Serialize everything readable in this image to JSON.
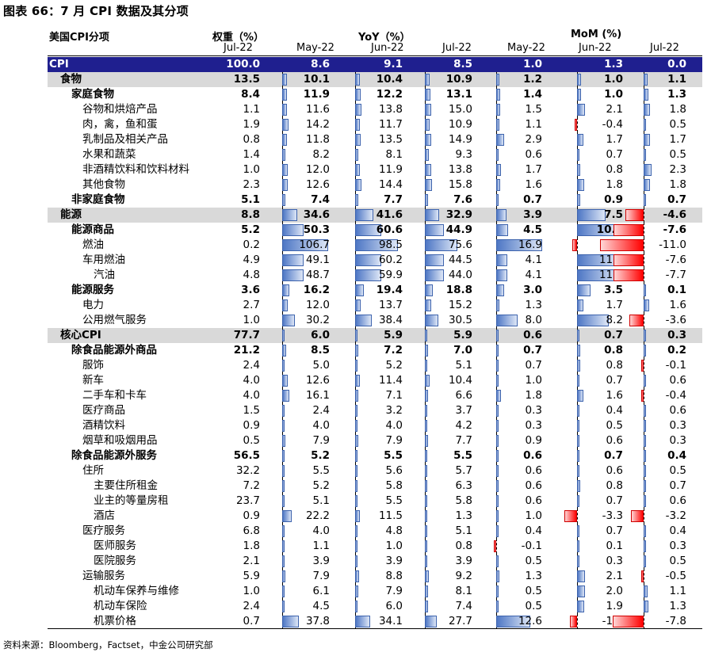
{
  "title": "图表 66：7 月 CPI 数据及其分项",
  "header": {
    "category": "美国CPI分项",
    "weight": "权重（%）",
    "yoy": "YoY（%）",
    "mom": "MoM (%)",
    "sub": [
      "Jul-22",
      "May-22",
      "Jun-22",
      "Jul-22",
      "May-22",
      "Jun-22",
      "Jul-22"
    ]
  },
  "rows": [
    {
      "label": "CPI",
      "level": 0,
      "style": "cpi",
      "w": "100.0",
      "v": [
        "8.6",
        "9.1",
        "8.5",
        "1.0",
        "1.3",
        "0.0"
      ]
    },
    {
      "label": "食物",
      "level": 1,
      "style": "shadebold",
      "w": "13.5",
      "v": [
        "10.1",
        "10.4",
        "10.9",
        "1.2",
        "1.0",
        "1.1"
      ]
    },
    {
      "label": "家庭食物",
      "level": 2,
      "style": "bold",
      "w": "8.4",
      "v": [
        "11.9",
        "12.2",
        "13.1",
        "1.4",
        "1.0",
        "1.3"
      ]
    },
    {
      "label": "谷物和烘焙产品",
      "level": 3,
      "style": "",
      "w": "1.1",
      "v": [
        "11.6",
        "13.8",
        "15.0",
        "1.5",
        "2.1",
        "1.8"
      ]
    },
    {
      "label": "肉，禽，鱼和蛋",
      "level": 3,
      "style": "",
      "w": "1.9",
      "v": [
        "14.2",
        "11.7",
        "10.9",
        "1.1",
        "-0.4",
        "0.5"
      ]
    },
    {
      "label": "乳制品及相关产品",
      "level": 3,
      "style": "",
      "w": "0.8",
      "v": [
        "11.8",
        "13.5",
        "14.9",
        "2.9",
        "1.7",
        "1.7"
      ]
    },
    {
      "label": "水果和蔬菜",
      "level": 3,
      "style": "",
      "w": "1.4",
      "v": [
        "8.2",
        "8.1",
        "9.3",
        "0.6",
        "0.7",
        "0.5"
      ]
    },
    {
      "label": "非酒精饮料和饮料材料",
      "level": 3,
      "style": "",
      "w": "1.0",
      "v": [
        "12.0",
        "11.9",
        "13.8",
        "1.7",
        "0.8",
        "2.3"
      ]
    },
    {
      "label": "其他食物",
      "level": 3,
      "style": "",
      "w": "2.3",
      "v": [
        "12.6",
        "14.4",
        "15.8",
        "1.6",
        "1.8",
        "1.8"
      ]
    },
    {
      "label": "非家庭食物",
      "level": 2,
      "style": "bold",
      "w": "5.1",
      "v": [
        "7.4",
        "7.7",
        "7.6",
        "0.7",
        "0.9",
        "0.7"
      ]
    },
    {
      "label": "能源",
      "level": 1,
      "style": "shadebold",
      "w": "8.8",
      "v": [
        "34.6",
        "41.6",
        "32.9",
        "3.9",
        "7.5",
        "-4.6"
      ]
    },
    {
      "label": "能源商品",
      "level": 2,
      "style": "bold",
      "w": "5.2",
      "v": [
        "50.3",
        "60.6",
        "44.9",
        "4.5",
        "10.4",
        "-7.6"
      ]
    },
    {
      "label": "燃油",
      "level": 3,
      "style": "",
      "w": "0.2",
      "v": [
        "106.7",
        "98.5",
        "75.6",
        "16.9",
        "-1.2",
        "-11.0"
      ]
    },
    {
      "label": "车用燃油",
      "level": 3,
      "style": "",
      "w": "4.9",
      "v": [
        "49.1",
        "60.2",
        "44.5",
        "4.1",
        "11.0",
        "-7.6"
      ]
    },
    {
      "label": "汽油",
      "level": 4,
      "style": "",
      "w": "4.8",
      "v": [
        "48.7",
        "59.9",
        "44.0",
        "4.1",
        "11.2",
        "-7.7"
      ]
    },
    {
      "label": "能源服务",
      "level": 2,
      "style": "bold",
      "w": "3.6",
      "v": [
        "16.2",
        "19.4",
        "18.8",
        "3.0",
        "3.5",
        "0.1"
      ]
    },
    {
      "label": "电力",
      "level": 3,
      "style": "",
      "w": "2.7",
      "v": [
        "12.0",
        "13.7",
        "15.2",
        "1.3",
        "1.7",
        "1.6"
      ]
    },
    {
      "label": "公用燃气服务",
      "level": 3,
      "style": "",
      "w": "1.0",
      "v": [
        "30.2",
        "38.4",
        "30.5",
        "8.0",
        "8.2",
        "-3.6"
      ]
    },
    {
      "label": "核心CPI",
      "level": 1,
      "style": "shadebold",
      "w": "77.7",
      "v": [
        "6.0",
        "5.9",
        "5.9",
        "0.6",
        "0.7",
        "0.3"
      ]
    },
    {
      "label": "除食品能源外商品",
      "level": 2,
      "style": "bold",
      "w": "21.2",
      "v": [
        "8.5",
        "7.2",
        "7.0",
        "0.7",
        "0.8",
        "0.2"
      ]
    },
    {
      "label": "服饰",
      "level": 3,
      "style": "",
      "w": "2.4",
      "v": [
        "5.0",
        "5.2",
        "5.1",
        "0.7",
        "0.8",
        "-0.1"
      ]
    },
    {
      "label": "新车",
      "level": 3,
      "style": "",
      "w": "4.0",
      "v": [
        "12.6",
        "11.4",
        "10.4",
        "1.0",
        "0.7",
        "0.6"
      ]
    },
    {
      "label": "二手车和卡车",
      "level": 3,
      "style": "",
      "w": "4.0",
      "v": [
        "16.1",
        "7.1",
        "6.6",
        "1.8",
        "1.6",
        "-0.4"
      ]
    },
    {
      "label": "医疗商品",
      "level": 3,
      "style": "",
      "w": "1.5",
      "v": [
        "2.4",
        "3.2",
        "3.7",
        "0.3",
        "0.4",
        "0.6"
      ]
    },
    {
      "label": "酒精饮料",
      "level": 3,
      "style": "",
      "w": "0.9",
      "v": [
        "4.0",
        "4.0",
        "4.2",
        "0.3",
        "0.5",
        "0.3"
      ]
    },
    {
      "label": "烟草和吸烟用品",
      "level": 3,
      "style": "",
      "w": "0.5",
      "v": [
        "7.9",
        "7.9",
        "7.7",
        "0.9",
        "0.6",
        "0.3"
      ]
    },
    {
      "label": "除食品能源外服务",
      "level": 2,
      "style": "bold",
      "w": "56.5",
      "v": [
        "5.2",
        "5.5",
        "5.5",
        "0.6",
        "0.7",
        "0.4"
      ]
    },
    {
      "label": "住所",
      "level": 3,
      "style": "",
      "w": "32.2",
      "v": [
        "5.5",
        "5.6",
        "5.7",
        "0.6",
        "0.6",
        "0.5"
      ]
    },
    {
      "label": "主要住所租金",
      "level": 4,
      "style": "",
      "w": "7.2",
      "v": [
        "5.2",
        "5.8",
        "6.3",
        "0.6",
        "0.8",
        "0.7"
      ]
    },
    {
      "label": "业主的等量房租",
      "level": 4,
      "style": "",
      "w": "23.7",
      "v": [
        "5.1",
        "5.5",
        "5.8",
        "0.6",
        "0.7",
        "0.6"
      ]
    },
    {
      "label": "酒店",
      "level": 4,
      "style": "",
      "w": "0.9",
      "v": [
        "22.2",
        "11.5",
        "1.3",
        "1.0",
        "-3.3",
        "-3.2"
      ]
    },
    {
      "label": "医疗服务",
      "level": 3,
      "style": "",
      "w": "6.8",
      "v": [
        "4.0",
        "4.8",
        "5.1",
        "0.4",
        "0.7",
        "0.4"
      ]
    },
    {
      "label": "医师服务",
      "level": 4,
      "style": "",
      "w": "1.8",
      "v": [
        "1.1",
        "1.0",
        "0.8",
        "-0.1",
        "0.1",
        "0.3"
      ]
    },
    {
      "label": "医院服务",
      "level": 4,
      "style": "",
      "w": "2.1",
      "v": [
        "3.9",
        "3.9",
        "3.9",
        "0.5",
        "0.3",
        "0.5"
      ]
    },
    {
      "label": "运输服务",
      "level": 3,
      "style": "",
      "w": "5.9",
      "v": [
        "7.9",
        "8.8",
        "9.2",
        "1.3",
        "2.1",
        "-0.5"
      ]
    },
    {
      "label": "机动车保养与维修",
      "level": 4,
      "style": "",
      "w": "1.0",
      "v": [
        "6.1",
        "7.9",
        "8.1",
        "0.5",
        "2.0",
        "1.1"
      ]
    },
    {
      "label": "机动车保险",
      "level": 4,
      "style": "",
      "w": "2.4",
      "v": [
        "4.5",
        "6.0",
        "7.4",
        "0.5",
        "1.9",
        "1.3"
      ]
    },
    {
      "label": "机票价格",
      "level": 4,
      "style": "",
      "w": "0.7",
      "v": [
        "37.8",
        "34.1",
        "27.7",
        "12.6",
        "-1.8",
        "-7.8"
      ]
    }
  ],
  "footer": "资料来源：Bloomberg，Factset，中金公司研究部"
}
